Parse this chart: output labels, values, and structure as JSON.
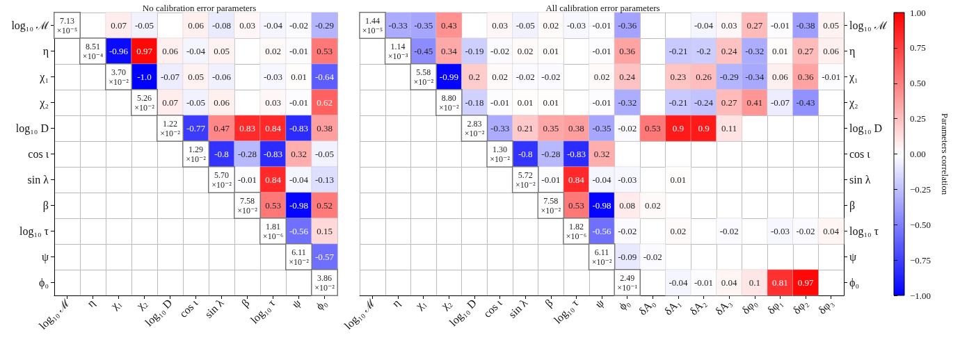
{
  "chart_data": [
    {
      "type": "heatmap",
      "title": "No calibration error parameters",
      "grid": true,
      "categories": [
        "log₁₀ ℳ",
        "η",
        "χ₁",
        "χ₂",
        "log₁₀ D",
        "cos ι",
        "sin λ",
        "β",
        "log₁₀ τ",
        "ψ",
        "ϕ₀"
      ],
      "y_categories": [
        "log₁₀ ℳ",
        "η",
        "χ₁",
        "χ₂",
        "log₁₀ D",
        "cos ι",
        "sin λ",
        "β",
        "log₁₀ τ",
        "ψ",
        "ϕ₀"
      ],
      "cells": [
        [
          null,
          null,
          0.07,
          -0.05,
          null,
          0.06,
          -0.08,
          0.03,
          -0.04,
          -0.02,
          -0.29
        ],
        [
          null,
          null,
          -0.96,
          0.97,
          0.06,
          -0.04,
          0.05,
          null,
          0.02,
          -0.01,
          0.53
        ],
        [
          null,
          null,
          null,
          -1.0,
          -0.07,
          0.05,
          -0.06,
          null,
          -0.03,
          0.01,
          -0.64
        ],
        [
          null,
          null,
          null,
          null,
          0.07,
          -0.05,
          0.06,
          null,
          0.03,
          -0.01,
          0.62
        ],
        [
          null,
          null,
          null,
          null,
          null,
          -0.77,
          0.47,
          0.83,
          0.84,
          -0.83,
          0.38
        ],
        [
          null,
          null,
          null,
          null,
          null,
          null,
          -0.8,
          -0.28,
          -0.83,
          0.32,
          -0.05
        ],
        [
          null,
          null,
          null,
          null,
          null,
          null,
          null,
          -0.01,
          0.84,
          -0.04,
          -0.13
        ],
        [
          null,
          null,
          null,
          null,
          null,
          null,
          null,
          null,
          0.53,
          -0.98,
          0.52
        ],
        [
          null,
          null,
          null,
          null,
          null,
          null,
          null,
          null,
          null,
          -0.56,
          0.15
        ],
        [
          null,
          null,
          null,
          null,
          null,
          null,
          null,
          null,
          null,
          null,
          -0.57
        ],
        [
          null,
          null,
          null,
          null,
          null,
          null,
          null,
          null,
          null,
          null,
          null
        ]
      ],
      "cell_labels": [
        [
          "7.13 ×10⁻⁵",
          null,
          "0.07",
          "-0.05",
          null,
          "0.06",
          "-0.08",
          "0.03",
          "-0.04",
          "-0.02",
          "-0.29"
        ],
        [
          null,
          "8.51 ×10⁻⁴",
          "-0.96",
          "0.97",
          "0.06",
          "-0.04",
          "0.05",
          null,
          "0.02",
          "-0.01",
          "0.53"
        ],
        [
          null,
          null,
          "3.70 ×10⁻²",
          "-1.0",
          "-0.07",
          "0.05",
          "-0.06",
          null,
          "-0.03",
          "0.01",
          "-0.64"
        ],
        [
          null,
          null,
          null,
          "5.26 ×10⁻²",
          "0.07",
          "-0.05",
          "0.06",
          null,
          "0.03",
          "-0.01",
          "0.62"
        ],
        [
          null,
          null,
          null,
          null,
          "1.22 ×10⁻²",
          "-0.77",
          "0.47",
          "0.83",
          "0.84",
          "-0.83",
          "0.38"
        ],
        [
          null,
          null,
          null,
          null,
          null,
          "1.29 ×10⁻²",
          "-0.8",
          "-0.28",
          "-0.83",
          "0.32",
          "-0.05"
        ],
        [
          null,
          null,
          null,
          null,
          null,
          null,
          "5.70 ×10⁻²",
          "-0.01",
          "0.84",
          "-0.04",
          "-0.13"
        ],
        [
          null,
          null,
          null,
          null,
          null,
          null,
          null,
          "7.58 ×10⁻²",
          "0.53",
          "-0.98",
          "0.52"
        ],
        [
          null,
          null,
          null,
          null,
          null,
          null,
          null,
          null,
          "1.81 ×10⁻⁶",
          "-0.56",
          "0.15"
        ],
        [
          null,
          null,
          null,
          null,
          null,
          null,
          null,
          null,
          null,
          "6.11 ×10⁻²",
          "-0.57"
        ],
        [
          null,
          null,
          null,
          null,
          null,
          null,
          null,
          null,
          null,
          null,
          "3.86 ×10⁻²"
        ]
      ]
    },
    {
      "type": "heatmap",
      "title": "All calibration error parameters",
      "grid": true,
      "clim": [
        -1,
        1
      ],
      "clabel": "Parameters correlation",
      "cticks": [
        {
          "value": 1,
          "label": "1.00"
        },
        {
          "value": 0.75,
          "label": "0.75"
        },
        {
          "value": 0.5,
          "label": "0.50"
        },
        {
          "value": 0.25,
          "label": "0.25"
        },
        {
          "value": 0,
          "label": "0.00"
        },
        {
          "value": -0.25,
          "label": "−0.25"
        },
        {
          "value": -0.5,
          "label": "−0.50"
        },
        {
          "value": -0.75,
          "label": "−0.75"
        },
        {
          "value": -1,
          "label": "−1.00"
        }
      ],
      "categories": [
        "log₁₀ ℳ",
        "η",
        "χ₁",
        "χ₂",
        "log₁₀ D",
        "cos ι",
        "sin λ",
        "β",
        "log₁₀ τ",
        "ψ",
        "ϕ₀",
        "δA₀",
        "δA₁",
        "δA₂",
        "δA₃",
        "δφ₀",
        "δφ₁",
        "δφ₂",
        "δφ₃"
      ],
      "y_categories": [
        "log₁₀ ℳ",
        "η",
        "χ₁",
        "χ₂",
        "log₁₀ D",
        "cos ι",
        "sin λ",
        "β",
        "log₁₀ τ",
        "ψ",
        "ϕ₀"
      ],
      "cells": [
        [
          null,
          -0.33,
          -0.35,
          0.43,
          null,
          0.03,
          -0.05,
          0.02,
          -0.03,
          -0.01,
          -0.36,
          null,
          null,
          -0.04,
          0.03,
          0.27,
          -0.01,
          -0.38,
          0.05
        ],
        [
          null,
          null,
          -0.45,
          0.34,
          -0.19,
          -0.02,
          0.02,
          0.01,
          null,
          -0.01,
          0.36,
          null,
          -0.21,
          -0.2,
          0.24,
          -0.32,
          0.01,
          0.27,
          0.06
        ],
        [
          null,
          null,
          null,
          -0.99,
          0.2,
          0.02,
          -0.02,
          -0.02,
          null,
          0.02,
          0.24,
          null,
          0.23,
          0.26,
          -0.29,
          -0.34,
          0.06,
          0.36,
          -0.01
        ],
        [
          null,
          null,
          null,
          null,
          -0.18,
          -0.01,
          0.01,
          0.01,
          null,
          -0.01,
          -0.32,
          null,
          -0.21,
          -0.24,
          0.27,
          0.41,
          -0.07,
          -0.43,
          null
        ],
        [
          null,
          null,
          null,
          null,
          null,
          -0.33,
          0.21,
          0.35,
          0.38,
          -0.35,
          -0.02,
          0.53,
          0.9,
          0.9,
          0.11,
          null,
          null,
          null,
          null
        ],
        [
          null,
          null,
          null,
          null,
          null,
          null,
          -0.8,
          -0.28,
          -0.83,
          0.32,
          null,
          null,
          null,
          null,
          null,
          null,
          null,
          null,
          null
        ],
        [
          null,
          null,
          null,
          null,
          null,
          null,
          null,
          -0.01,
          0.84,
          -0.04,
          -0.03,
          null,
          0.01,
          null,
          null,
          null,
          null,
          null,
          null
        ],
        [
          null,
          null,
          null,
          null,
          null,
          null,
          null,
          null,
          0.53,
          -0.98,
          0.08,
          0.02,
          null,
          null,
          null,
          null,
          null,
          null,
          null
        ],
        [
          null,
          null,
          null,
          null,
          null,
          null,
          null,
          null,
          null,
          -0.56,
          -0.02,
          null,
          0.02,
          null,
          -0.02,
          null,
          -0.03,
          -0.02,
          0.04
        ],
        [
          null,
          null,
          null,
          null,
          null,
          null,
          null,
          null,
          null,
          null,
          -0.09,
          -0.02,
          null,
          null,
          null,
          null,
          null,
          null,
          null
        ],
        [
          null,
          null,
          null,
          null,
          null,
          null,
          null,
          null,
          null,
          null,
          null,
          null,
          -0.04,
          -0.01,
          0.04,
          0.1,
          0.81,
          0.97,
          null
        ]
      ],
      "cell_labels": [
        [
          "1.44 ×10⁻⁵",
          "-0.33",
          "-0.35",
          "0.43",
          null,
          "0.03",
          "-0.05",
          "0.02",
          "-0.03",
          "-0.01",
          "-0.36",
          null,
          null,
          "-0.04",
          "0.03",
          "0.27",
          "-0.01",
          "-0.38",
          "0.05"
        ],
        [
          null,
          "1.14 ×10⁻³",
          "-0.45",
          "0.34",
          "-0.19",
          "-0.02",
          "0.02",
          "0.01",
          null,
          "-0.01",
          "0.36",
          null,
          "-0.21",
          "-0.2",
          "0.24",
          "-0.32",
          "0.01",
          "0.27",
          "0.06"
        ],
        [
          null,
          null,
          "5.58 ×10⁻²",
          "-0.99",
          "0.2",
          "0.02",
          "-0.02",
          "-0.02",
          null,
          "0.02",
          "0.24",
          null,
          "0.23",
          "0.26",
          "-0.29",
          "-0.34",
          "0.06",
          "0.36",
          "-0.01"
        ],
        [
          null,
          null,
          null,
          "8.80 ×10⁻²",
          "-0.18",
          "-0.01",
          "0.01",
          "0.01",
          null,
          "-0.01",
          "-0.32",
          null,
          "-0.21",
          "-0.24",
          "0.27",
          "0.41",
          "-0.07",
          "-0.43",
          null
        ],
        [
          null,
          null,
          null,
          null,
          "2.83 ×10⁻²",
          "-0.33",
          "0.21",
          "0.35",
          "0.38",
          "-0.35",
          "-0.02",
          "0.53",
          "0.9",
          "0.9",
          "0.11",
          null,
          null,
          null,
          null
        ],
        [
          null,
          null,
          null,
          null,
          null,
          "1.30 ×10⁻²",
          "-0.8",
          "-0.28",
          "-0.83",
          "0.32",
          null,
          null,
          null,
          null,
          null,
          null,
          null,
          null,
          null
        ],
        [
          null,
          null,
          null,
          null,
          null,
          null,
          "5.72 ×10⁻²",
          "-0.01",
          "0.84",
          "-0.04",
          "-0.03",
          null,
          "0.01",
          null,
          null,
          null,
          null,
          null,
          null
        ],
        [
          null,
          null,
          null,
          null,
          null,
          null,
          null,
          "7.58 ×10⁻²",
          "0.53",
          "-0.98",
          "0.08",
          "0.02",
          null,
          null,
          null,
          null,
          null,
          null,
          null
        ],
        [
          null,
          null,
          null,
          null,
          null,
          null,
          null,
          null,
          "1.82 ×10⁻⁶",
          "-0.56",
          "-0.02",
          null,
          "0.02",
          null,
          "-0.02",
          null,
          "-0.03",
          "-0.02",
          "0.04"
        ],
        [
          null,
          null,
          null,
          null,
          null,
          null,
          null,
          null,
          null,
          "6.11 ×10⁻²",
          "-0.09",
          "-0.02",
          null,
          null,
          null,
          null,
          null,
          null,
          null
        ],
        [
          null,
          null,
          null,
          null,
          null,
          null,
          null,
          null,
          null,
          null,
          "2.49 ×10⁻¹",
          null,
          "-0.04",
          "-0.01",
          "0.04",
          "0.1",
          "0.81",
          "0.97",
          null
        ]
      ]
    }
  ]
}
